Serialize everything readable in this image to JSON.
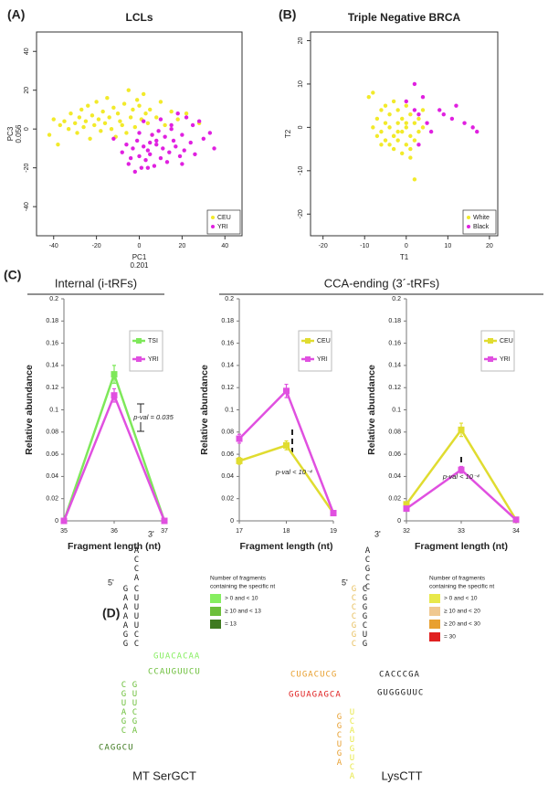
{
  "chart_data": [
    {
      "type": "scatter",
      "panel_label": "(A)",
      "title": "LCLs",
      "x_label": "PC1",
      "x_label_2": "0.201",
      "y_label": "PC3",
      "y_label_2": "0.056",
      "xlim": [
        -48,
        48
      ],
      "ylim": [
        -55,
        50
      ],
      "xticks": [
        -40,
        -20,
        0,
        20,
        40
      ],
      "yticks": [
        -40,
        -20,
        0,
        20,
        40
      ],
      "legend": "bottom right",
      "series": [
        {
          "name": "CEU",
          "color": "#f2ea2a",
          "x": [
            -42,
            -40,
            -38,
            -37,
            -35,
            -33,
            -32,
            -30,
            -29,
            -28,
            -27,
            -26,
            -25,
            -24,
            -23,
            -22,
            -21,
            -20,
            -19,
            -18,
            -17,
            -16,
            -15,
            -14,
            -13,
            -12,
            -11,
            -10,
            -9,
            -8,
            -7,
            -6,
            -5,
            -4,
            -3,
            -2,
            -1,
            0,
            1,
            2,
            3,
            4,
            5,
            6,
            8,
            10,
            12,
            15,
            18,
            22,
            28
          ],
          "values": [
            -3,
            5,
            -8,
            2,
            4,
            0,
            8,
            3,
            -2,
            6,
            10,
            1,
            4,
            12,
            -5,
            7,
            2,
            14,
            5,
            -1,
            9,
            3,
            16,
            6,
            0,
            11,
            -4,
            8,
            4,
            2,
            13,
            -2,
            20,
            6,
            10,
            1,
            15,
            12,
            5,
            18,
            8,
            3,
            10,
            -3,
            6,
            14,
            2,
            9,
            5,
            8,
            3
          ]
        },
        {
          "name": "YRI",
          "color": "#e020e0",
          "x": [
            -12,
            -8,
            -6,
            -5,
            -3,
            -2,
            -1,
            0,
            0,
            1,
            2,
            2,
            3,
            4,
            5,
            5,
            6,
            7,
            8,
            9,
            10,
            10,
            11,
            12,
            13,
            14,
            15,
            16,
            17,
            18,
            19,
            20,
            21,
            22,
            24,
            25,
            26,
            28,
            30,
            33,
            35,
            -4,
            4,
            8,
            15,
            20
          ],
          "values": [
            -5,
            -12,
            -8,
            -18,
            -10,
            -22,
            -6,
            -14,
            -2,
            -20,
            -9,
            4,
            -16,
            -11,
            -7,
            -13,
            -3,
            -19,
            -8,
            -1,
            -15,
            5,
            -10,
            -4,
            -17,
            -12,
            2,
            -6,
            -9,
            8,
            -14,
            -3,
            -11,
            6,
            -7,
            2,
            -13,
            4,
            -5,
            -2,
            -10,
            -15,
            -20,
            -6,
            0,
            -18
          ]
        }
      ]
    },
    {
      "type": "scatter",
      "panel_label": "(B)",
      "title": "Triple Negative BRCA",
      "x_label": "T1",
      "y_label": "T2",
      "xlim": [
        -23,
        22
      ],
      "ylim": [
        -25,
        22
      ],
      "xticks": [
        -20,
        -10,
        0,
        10,
        20
      ],
      "yticks": [
        -20,
        -10,
        0,
        10,
        20
      ],
      "legend": "bottom right",
      "series": [
        {
          "name": "White",
          "color": "#f2ea2a",
          "x": [
            -9,
            -8,
            -8,
            -7,
            -7,
            -6,
            -6,
            -5,
            -5,
            -5,
            -4,
            -4,
            -4,
            -3,
            -3,
            -3,
            -2,
            -2,
            -2,
            -1,
            -1,
            -1,
            0,
            0,
            0,
            1,
            1,
            1,
            2,
            2,
            3,
            3,
            4,
            4,
            -6,
            -3,
            0,
            2,
            -2,
            1
          ],
          "values": [
            7,
            0,
            8,
            2,
            -2,
            4,
            -1,
            1,
            -3,
            5,
            0,
            -4,
            3,
            -2,
            6,
            -5,
            1,
            -3,
            4,
            -1,
            2,
            -6,
            0,
            5,
            -4,
            -2,
            3,
            -7,
            1,
            -3,
            -1,
            2,
            0,
            4,
            -4,
            -2,
            1,
            -12,
            -1,
            -5
          ]
        },
        {
          "name": "Black",
          "color": "#e020e0",
          "x": [
            0,
            2,
            2,
            3,
            4,
            5,
            6,
            8,
            9,
            11,
            12,
            14,
            16,
            17,
            3
          ],
          "values": [
            6,
            10,
            4,
            3,
            7,
            1,
            -1,
            4,
            3,
            2,
            5,
            1,
            0,
            -1,
            -4
          ]
        }
      ]
    },
    {
      "type": "line",
      "panel_label": "(C)",
      "group_title": "Internal (i-tRFs)",
      "x_label": "Fragment length (nt)",
      "y_label": "Relative abundance",
      "annotation": "p-val = 0.035",
      "legend": "top right",
      "x": [
        35,
        36,
        37
      ],
      "xlim": [
        35,
        37
      ],
      "xticks": [
        35,
        36,
        37
      ],
      "ylim": [
        0,
        0.2
      ],
      "yticks": [
        0,
        0.02,
        0.04,
        0.06,
        0.08,
        0.1,
        0.12,
        0.14,
        0.16,
        0.18,
        0.2
      ],
      "series": [
        {
          "name": "TSI",
          "color": "#7ee85a",
          "values": [
            0,
            0.132,
            0
          ],
          "errors": [
            0.002,
            0.008,
            0.002
          ]
        },
        {
          "name": "YRI",
          "color": "#e050e0",
          "values": [
            0,
            0.113,
            0
          ],
          "errors": [
            0.002,
            0.006,
            0.002
          ]
        }
      ]
    },
    {
      "type": "line",
      "group_title": "CCA-ending (3´-tRFs)",
      "x_label": "Fragment length (nt)",
      "y_label": "Relative abundance",
      "annotation": "p-val < 10⁻⁴",
      "legend": "top right",
      "x": [
        17,
        18,
        19
      ],
      "xlim": [
        17,
        19
      ],
      "xticks": [
        17,
        18,
        19
      ],
      "ylim": [
        0,
        0.2
      ],
      "yticks": [
        0,
        0.02,
        0.04,
        0.06,
        0.08,
        0.1,
        0.12,
        0.14,
        0.16,
        0.18,
        0.2
      ],
      "series": [
        {
          "name": "CEU",
          "color": "#e0dc30",
          "values": [
            0.054,
            0.068,
            0.007
          ],
          "errors": [
            0.003,
            0.004,
            0.001
          ]
        },
        {
          "name": "YRI",
          "color": "#e050e0",
          "values": [
            0.074,
            0.117,
            0.007
          ],
          "errors": [
            0.004,
            0.006,
            0.001
          ]
        }
      ]
    },
    {
      "type": "line",
      "x_label": "Fragment length (nt)",
      "y_label": "Relative abundance",
      "annotation": "p-val < 10⁻⁴",
      "legend": "top right",
      "x": [
        32,
        33,
        34
      ],
      "xlim": [
        32,
        34
      ],
      "xticks": [
        32,
        33,
        34
      ],
      "ylim": [
        0,
        0.2
      ],
      "yticks": [
        0,
        0.02,
        0.04,
        0.06,
        0.08,
        0.1,
        0.12,
        0.14,
        0.16,
        0.18,
        0.2
      ],
      "series": [
        {
          "name": "CEU",
          "color": "#e0dc30",
          "values": [
            0.015,
            0.082,
            0.001
          ],
          "errors": [
            0.002,
            0.006,
            0.001
          ]
        },
        {
          "name": "YRI",
          "color": "#e050e0",
          "values": [
            0.011,
            0.046,
            0.001
          ],
          "errors": [
            0.002,
            0.003,
            0.001
          ]
        }
      ]
    }
  ],
  "panel_d": {
    "panel_label": "(D)",
    "structures": [
      {
        "name": "MT SerGCT",
        "prime3": "3'",
        "prime5": "5'",
        "legend_title": [
          "Number of fragments",
          "containing the specific nt"
        ],
        "legend_items": [
          "> 0 and < 10",
          "≥ 10 and < 13",
          "= 13"
        ],
        "legend_colors": [
          "#86ee60",
          "#6cbf3a",
          "#3f7a20"
        ],
        "strands": [
          {
            "text": "ACCA",
            "color": "#222222"
          },
          {
            "text": "GAAAAGG",
            "color": "#222222"
          },
          {
            "text": "CUUUUCC",
            "color": "#222222"
          },
          {
            "text": "GUACACAA",
            "color": "#86ee60"
          },
          {
            "text": "CCAUGUUCU",
            "color": "#6cbf3a"
          },
          {
            "text": "CGUAGC",
            "color": "#6cbf3a"
          },
          {
            "text": "GUUCGA",
            "color": "#6cbf3a"
          },
          {
            "text": "CAGGCU",
            "color": "#3f7a20"
          }
        ]
      },
      {
        "name": "LysCTT",
        "prime3": "3'",
        "prime5": "5'",
        "legend_title": [
          "Number of fragments",
          "containing the specific nt"
        ],
        "legend_items": [
          "> 0 and < 10",
          "≥ 10 and < 20",
          "≥ 20 and < 30",
          "= 30"
        ],
        "legend_colors": [
          "#e8e84a",
          "#f0c890",
          "#e8a030",
          "#e02020"
        ],
        "strands": [
          {
            "text": "ACGCC",
            "color": "#222222"
          },
          {
            "text": "GCCCGGC",
            "color": "#e8c060"
          },
          {
            "text": "CGGGCUG",
            "color": "#222222"
          },
          {
            "text": "CUGACUCG",
            "color": "#e8a030"
          },
          {
            "text": "GGUAGAGCA",
            "color": "#e02020"
          },
          {
            "text": "CACCCGA",
            "color": "#222222"
          },
          {
            "text": "GUGGGUUC",
            "color": "#222222"
          },
          {
            "text": "GGCUGA",
            "color": "#e8a030"
          },
          {
            "text": "UCAUGUCA",
            "color": "#e8e84a"
          }
        ]
      }
    ]
  }
}
